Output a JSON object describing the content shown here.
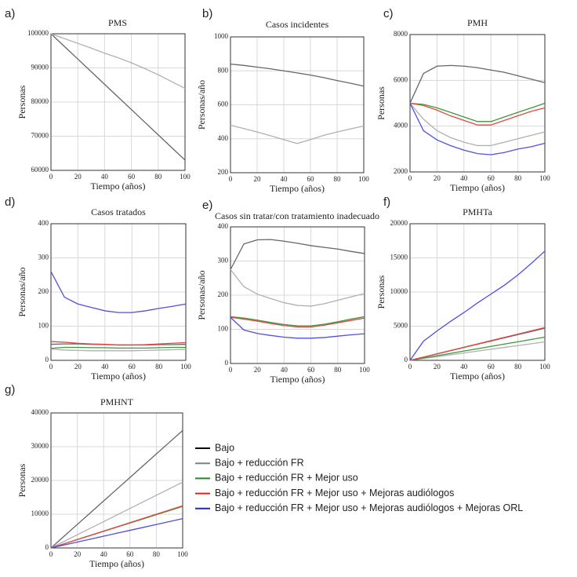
{
  "chart_data": [
    {
      "type": "line",
      "panel": "a)",
      "title": "PMS",
      "x_label": "Tiempo (años)",
      "y_label": "Personas",
      "x": [
        0,
        10,
        20,
        30,
        40,
        50,
        60,
        70,
        80,
        90,
        100
      ],
      "xlim": [
        0,
        100
      ],
      "xticks": [
        0,
        20,
        40,
        60,
        80,
        100
      ],
      "ylim": [
        60000,
        100000
      ],
      "yticks": [
        60000,
        70000,
        80000,
        90000,
        100000
      ],
      "grid": true,
      "series": [
        {
          "color": "#666666",
          "values": [
            100000,
            96300,
            92600,
            88900,
            85200,
            81500,
            77800,
            74100,
            70400,
            66700,
            63000
          ]
        },
        {
          "color": "#b0b0b0",
          "values": [
            100000,
            98600,
            97200,
            95800,
            94300,
            93000,
            91500,
            89800,
            88000,
            86000,
            84000
          ]
        }
      ]
    },
    {
      "type": "line",
      "panel": "b)",
      "title": "Casos incidentes",
      "x_label": "Tiempo (años)",
      "y_label": "Personas/año",
      "x": [
        0,
        10,
        20,
        30,
        40,
        50,
        60,
        70,
        80,
        90,
        100
      ],
      "xlim": [
        0,
        100
      ],
      "xticks": [
        0,
        20,
        40,
        60,
        80,
        100
      ],
      "ylim": [
        200,
        1000
      ],
      "yticks": [
        200,
        400,
        600,
        800,
        1000
      ],
      "grid": true,
      "series": [
        {
          "color": "#666666",
          "values": [
            840,
            832,
            822,
            812,
            800,
            788,
            775,
            760,
            743,
            727,
            710
          ]
        },
        {
          "color": "#b0b0b0",
          "values": [
            480,
            460,
            440,
            418,
            395,
            372,
            395,
            420,
            440,
            458,
            475
          ]
        }
      ]
    },
    {
      "type": "line",
      "panel": "c)",
      "title": "PMH",
      "x_label": "Tiempo (años)",
      "y_label": "Personas",
      "x": [
        0,
        10,
        20,
        30,
        40,
        50,
        60,
        70,
        80,
        90,
        100
      ],
      "xlim": [
        0,
        100
      ],
      "xticks": [
        0,
        20,
        40,
        60,
        80,
        100
      ],
      "ylim": [
        2000,
        8000
      ],
      "yticks": [
        2000,
        4000,
        6000,
        8000
      ],
      "grid": true,
      "series": [
        {
          "color": "#666666",
          "values": [
            5000,
            6300,
            6620,
            6650,
            6620,
            6550,
            6450,
            6350,
            6200,
            6050,
            5900
          ]
        },
        {
          "color": "#b0b0b0",
          "values": [
            5000,
            4300,
            3800,
            3500,
            3300,
            3150,
            3150,
            3300,
            3450,
            3600,
            3750
          ]
        },
        {
          "color": "#3a9a3a",
          "values": [
            5000,
            4950,
            4800,
            4600,
            4400,
            4200,
            4200,
            4400,
            4600,
            4800,
            5000
          ]
        },
        {
          "color": "#e04848",
          "values": [
            5000,
            4900,
            4700,
            4450,
            4250,
            4050,
            4050,
            4250,
            4450,
            4650,
            4800
          ]
        },
        {
          "color": "#5050e0",
          "values": [
            5000,
            3800,
            3400,
            3150,
            2950,
            2800,
            2750,
            2850,
            3000,
            3100,
            3250
          ]
        }
      ]
    },
    {
      "type": "line",
      "panel": "d)",
      "title": "Casos tratados",
      "x_label": "Tiempo (años)",
      "y_label": "Personas/año",
      "x": [
        0,
        10,
        20,
        30,
        40,
        50,
        60,
        70,
        80,
        90,
        100
      ],
      "xlim": [
        0,
        100
      ],
      "xticks": [
        0,
        20,
        40,
        60,
        80,
        100
      ],
      "ylim": [
        0,
        400
      ],
      "yticks": [
        0,
        100,
        200,
        300,
        400
      ],
      "grid": true,
      "series": [
        {
          "color": "#666666",
          "values": [
            47,
            48,
            48,
            47,
            46,
            45,
            45,
            45,
            46,
            46,
            47
          ]
        },
        {
          "color": "#b0b0b0",
          "values": [
            33,
            30,
            29,
            28,
            28,
            28,
            28,
            29,
            30,
            31,
            32
          ]
        },
        {
          "color": "#3a9a3a",
          "values": [
            35,
            38,
            38,
            37,
            37,
            36,
            36,
            36,
            37,
            38,
            38
          ]
        },
        {
          "color": "#e04848",
          "values": [
            55,
            53,
            50,
            48,
            47,
            45,
            45,
            46,
            48,
            50,
            52
          ]
        },
        {
          "color": "#5050e0",
          "values": [
            260,
            185,
            165,
            155,
            145,
            140,
            140,
            145,
            152,
            158,
            165
          ]
        }
      ]
    },
    {
      "type": "line",
      "panel": "e)",
      "title": "Casos sin tratar/con tratamiento inadecuado",
      "x_label": "Tiempo (años)",
      "y_label": "Personas/año",
      "x": [
        0,
        10,
        20,
        30,
        40,
        50,
        60,
        70,
        80,
        90,
        100
      ],
      "xlim": [
        0,
        100
      ],
      "xticks": [
        0,
        20,
        40,
        60,
        80,
        100
      ],
      "ylim": [
        0,
        400
      ],
      "yticks": [
        0,
        100,
        200,
        300,
        400
      ],
      "grid": true,
      "series": [
        {
          "color": "#666666",
          "values": [
            275,
            350,
            362,
            363,
            358,
            352,
            345,
            340,
            335,
            328,
            322
          ]
        },
        {
          "color": "#b0b0b0",
          "values": [
            275,
            225,
            203,
            190,
            178,
            170,
            168,
            175,
            185,
            195,
            205
          ]
        },
        {
          "color": "#3a9a3a",
          "values": [
            137,
            133,
            127,
            120,
            114,
            110,
            110,
            115,
            122,
            130,
            137
          ]
        },
        {
          "color": "#e04848",
          "values": [
            135,
            130,
            124,
            117,
            111,
            107,
            107,
            112,
            119,
            126,
            133
          ]
        },
        {
          "color": "#5050e0",
          "values": [
            135,
            98,
            88,
            82,
            77,
            74,
            74,
            76,
            80,
            84,
            87
          ]
        }
      ]
    },
    {
      "type": "line",
      "panel": "f)",
      "title": "PMHTa",
      "x_label": "Tiempo (años)",
      "y_label": "Personas",
      "x": [
        0,
        10,
        20,
        30,
        40,
        50,
        60,
        70,
        80,
        90,
        100
      ],
      "xlim": [
        0,
        100
      ],
      "xticks": [
        0,
        20,
        40,
        60,
        80,
        100
      ],
      "ylim": [
        0,
        20000
      ],
      "yticks": [
        0,
        5000,
        10000,
        15000,
        20000
      ],
      "grid": true,
      "series": [
        {
          "color": "#666666",
          "values": [
            0,
            470,
            940,
            1410,
            1880,
            2350,
            2820,
            3290,
            3760,
            4230,
            4700
          ]
        },
        {
          "color": "#b0b0b0",
          "values": [
            0,
            270,
            540,
            810,
            1080,
            1350,
            1620,
            1890,
            2160,
            2430,
            2700
          ]
        },
        {
          "color": "#3a9a3a",
          "values": [
            0,
            340,
            680,
            1020,
            1360,
            1700,
            2040,
            2380,
            2720,
            3060,
            3400
          ]
        },
        {
          "color": "#e04848",
          "values": [
            0,
            480,
            960,
            1440,
            1920,
            2400,
            2880,
            3360,
            3840,
            4320,
            4800
          ]
        },
        {
          "color": "#5050e0",
          "values": [
            0,
            2800,
            4300,
            5700,
            7000,
            8400,
            9700,
            11000,
            12500,
            14200,
            16000
          ]
        }
      ]
    },
    {
      "type": "line",
      "panel": "g)",
      "title": "PMHNT",
      "x_label": "Tiempo (años)",
      "y_label": "Personas",
      "x": [
        0,
        10,
        20,
        30,
        40,
        50,
        60,
        70,
        80,
        90,
        100
      ],
      "xlim": [
        0,
        100
      ],
      "xticks": [
        0,
        20,
        40,
        60,
        80,
        100
      ],
      "ylim": [
        0,
        40000
      ],
      "yticks": [
        0,
        10000,
        20000,
        30000,
        40000
      ],
      "grid": true,
      "series": [
        {
          "color": "#666666",
          "values": [
            0,
            3480,
            6960,
            10440,
            13920,
            17400,
            20880,
            24360,
            27840,
            31320,
            34800
          ]
        },
        {
          "color": "#b0b0b0",
          "values": [
            0,
            1950,
            3900,
            5850,
            7800,
            9750,
            11700,
            13650,
            15600,
            17550,
            19500
          ]
        },
        {
          "color": "#3a9a3a",
          "values": [
            0,
            1230,
            2460,
            3690,
            4920,
            6150,
            7380,
            8610,
            9840,
            11070,
            12300
          ]
        },
        {
          "color": "#e04848",
          "values": [
            0,
            1250,
            2500,
            3750,
            5000,
            6250,
            7500,
            8750,
            10000,
            11250,
            12500
          ]
        },
        {
          "color": "#5050e0",
          "values": [
            0,
            870,
            1740,
            2610,
            3480,
            4350,
            5220,
            6090,
            6960,
            7830,
            8700
          ]
        }
      ]
    }
  ],
  "legend": [
    {
      "name": "Bajo",
      "color": "#000000"
    },
    {
      "name": "Bajo + reducción FR",
      "color": "#808080"
    },
    {
      "name": "Bajo + reducción FR + Mejor uso",
      "color": "#1e8c1e"
    },
    {
      "name": "Bajo + reducción FR + Mejor uso + Mejoras audiólogos",
      "color": "#e02020"
    },
    {
      "name": "Bajo + reducción FR + Mejor uso + Mejoras audiólogos + Mejoras ORL",
      "color": "#2020e0"
    }
  ]
}
